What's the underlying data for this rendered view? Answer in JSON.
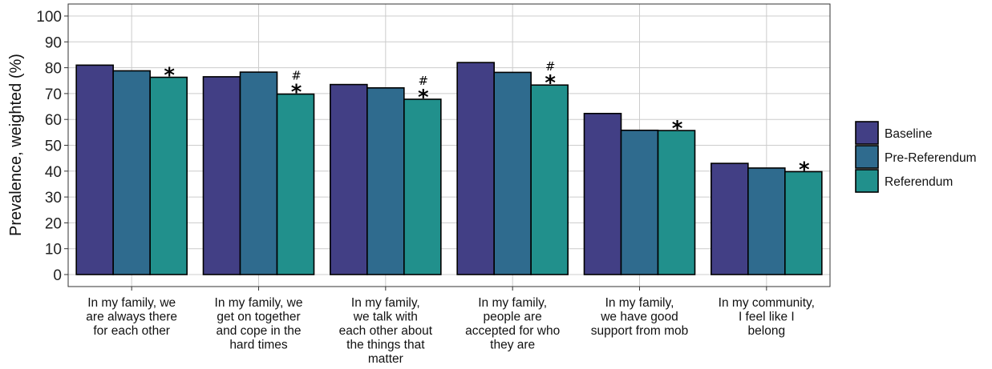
{
  "chart_data": {
    "type": "bar",
    "ylabel": "Prevalence, weighted (%)",
    "xlabel": "",
    "ylim": [
      0,
      100
    ],
    "yticks": [
      0,
      10,
      20,
      30,
      40,
      50,
      60,
      70,
      80,
      90,
      100
    ],
    "grid": true,
    "legend_position": "right",
    "categories": [
      [
        "In my family, we",
        "are always there",
        "for each other"
      ],
      [
        "In my family, we",
        "get on together",
        "and cope in the",
        "hard times"
      ],
      [
        "In my family,",
        "we talk with",
        "each other about",
        "the things that",
        "matter"
      ],
      [
        "In my family,",
        "people are",
        "accepted for who",
        "they are"
      ],
      [
        "In my family,",
        "we have good",
        "support from mob"
      ],
      [
        "In my community,",
        "I feel like I",
        "belong"
      ]
    ],
    "series": [
      {
        "name": "Baseline",
        "color": "#423f85",
        "values": [
          81,
          76.5,
          73.5,
          82,
          62.3,
          43
        ]
      },
      {
        "name": "Pre-Referendum",
        "color": "#2f6b8e",
        "values": [
          78.8,
          78.3,
          72.2,
          78.2,
          55.8,
          41.2
        ]
      },
      {
        "name": "Referendum",
        "color": "#21908c",
        "values": [
          76.3,
          69.8,
          67.8,
          73.3,
          55.7,
          39.8
        ]
      }
    ],
    "annotations": [
      {
        "category_index": 0,
        "series": "Referendum",
        "stack": [
          "*"
        ]
      },
      {
        "category_index": 1,
        "series": "Referendum",
        "stack": [
          "#",
          "*"
        ]
      },
      {
        "category_index": 2,
        "series": "Referendum",
        "stack": [
          "#",
          "*"
        ]
      },
      {
        "category_index": 3,
        "series": "Referendum",
        "stack": [
          "#",
          "*"
        ]
      },
      {
        "category_index": 4,
        "series": "Referendum",
        "stack": [
          "*"
        ]
      },
      {
        "category_index": 5,
        "series": "Referendum",
        "stack": [
          "*"
        ]
      }
    ]
  }
}
